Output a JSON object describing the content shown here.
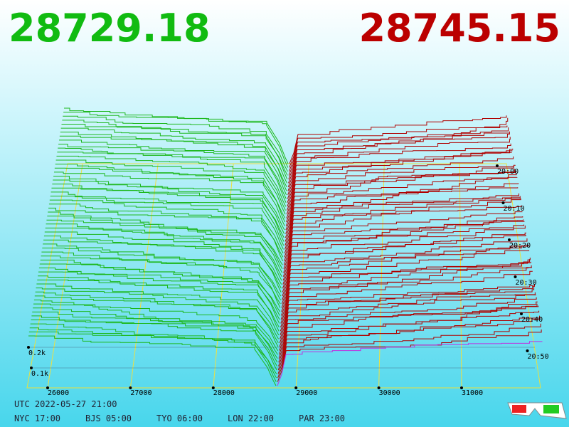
{
  "header": {
    "bid": "28729.18",
    "ask": "28745.15"
  },
  "price_axis": [
    "26000",
    "27000",
    "28000",
    "29000",
    "30000",
    "31000"
  ],
  "depth_axis": [
    "0.2k",
    "0.1k"
  ],
  "time_axis": [
    "20:00",
    "20:10",
    "20:20",
    "20:30",
    "20:40",
    "20:50"
  ],
  "footer": {
    "utc": "UTC 2022-05-27 21:00",
    "clocks": [
      "NYC 17:00",
      "BJS 05:00",
      "TYO 06:00",
      "LON 22:00",
      "PAR 23:00"
    ]
  }
}
